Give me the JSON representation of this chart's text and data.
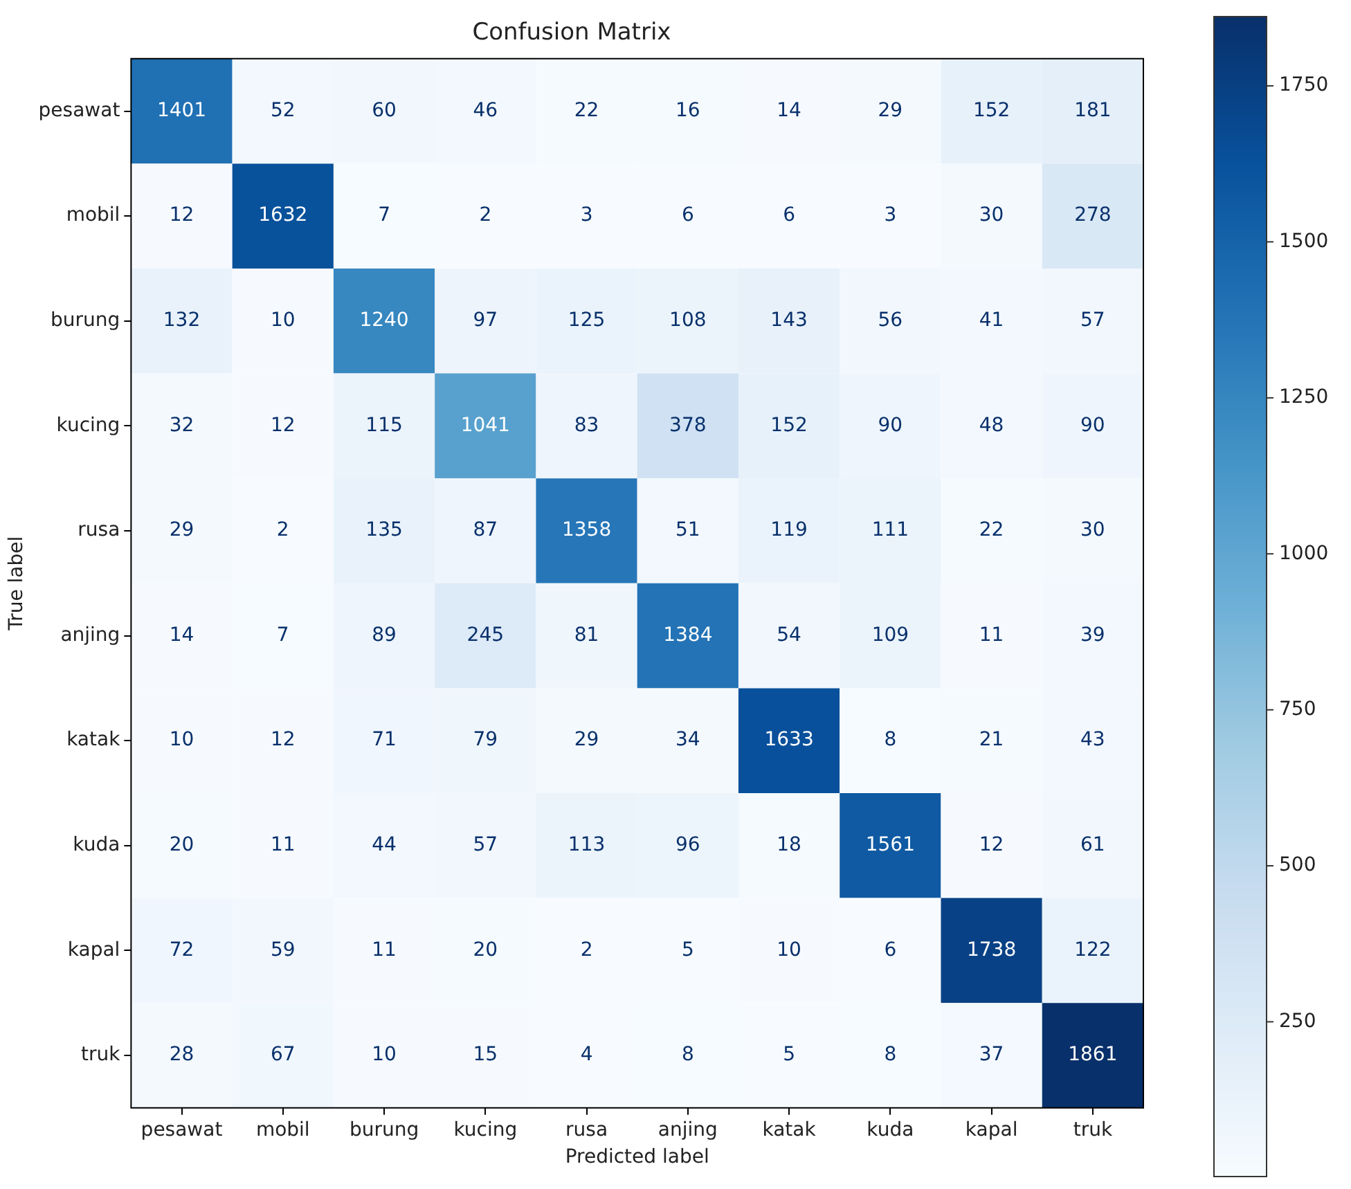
{
  "chart_data": {
    "type": "heatmap",
    "title": "Confusion Matrix",
    "xlabel": "Predicted label",
    "ylabel": "True label",
    "categories": [
      "pesawat",
      "mobil",
      "burung",
      "kucing",
      "rusa",
      "anjing",
      "katak",
      "kuda",
      "kapal",
      "truk"
    ],
    "y_categories": [
      "pesawat",
      "mobil",
      "burung",
      "kucing",
      "rusa",
      "anjing",
      "katak",
      "kuda",
      "kapal",
      "truk"
    ],
    "cells": [
      [
        1401,
        52,
        60,
        46,
        22,
        16,
        14,
        29,
        152,
        181
      ],
      [
        12,
        1632,
        7,
        2,
        3,
        6,
        6,
        3,
        30,
        278
      ],
      [
        132,
        10,
        1240,
        97,
        125,
        108,
        143,
        56,
        41,
        57
      ],
      [
        32,
        12,
        115,
        1041,
        83,
        378,
        152,
        90,
        48,
        90
      ],
      [
        29,
        2,
        135,
        87,
        1358,
        51,
        119,
        111,
        22,
        30
      ],
      [
        14,
        7,
        89,
        245,
        81,
        1384,
        54,
        109,
        11,
        39
      ],
      [
        10,
        12,
        71,
        79,
        29,
        34,
        1633,
        8,
        21,
        43
      ],
      [
        20,
        11,
        44,
        57,
        113,
        96,
        18,
        1561,
        12,
        61
      ],
      [
        72,
        59,
        11,
        20,
        2,
        5,
        10,
        6,
        1738,
        122
      ],
      [
        28,
        67,
        10,
        15,
        4,
        8,
        5,
        8,
        37,
        1861
      ]
    ],
    "clim": [
      2,
      1861
    ],
    "cticks": [
      250,
      500,
      750,
      1000,
      1250,
      1500,
      1750
    ],
    "data_labels": true
  }
}
